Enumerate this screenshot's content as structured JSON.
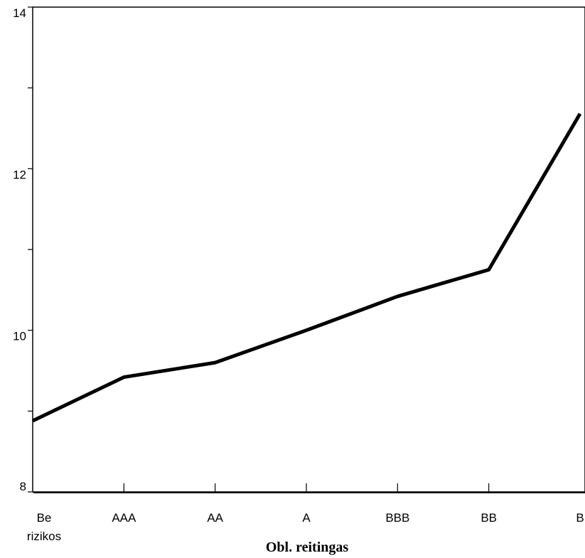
{
  "chart_data": {
    "type": "line",
    "title": "",
    "xlabel": "Obl. reitingas",
    "ylabel": "",
    "categories": [
      [
        "Be",
        "rizikos"
      ],
      [
        "AAA"
      ],
      [
        "AA"
      ],
      [
        "A"
      ],
      [
        "BBB"
      ],
      [
        "BB"
      ],
      [
        "B"
      ]
    ],
    "series": [
      {
        "values": [
          8.88,
          9.42,
          9.6,
          10.0,
          10.42,
          10.75,
          12.68
        ]
      }
    ],
    "ylim": [
      8,
      14
    ],
    "yticks": [
      8,
      9,
      10,
      11,
      12,
      13,
      14
    ],
    "ytick_labels": [
      "8",
      "",
      "10",
      "",
      "12",
      "",
      "14"
    ],
    "grid": false,
    "line_color": "#000000"
  }
}
